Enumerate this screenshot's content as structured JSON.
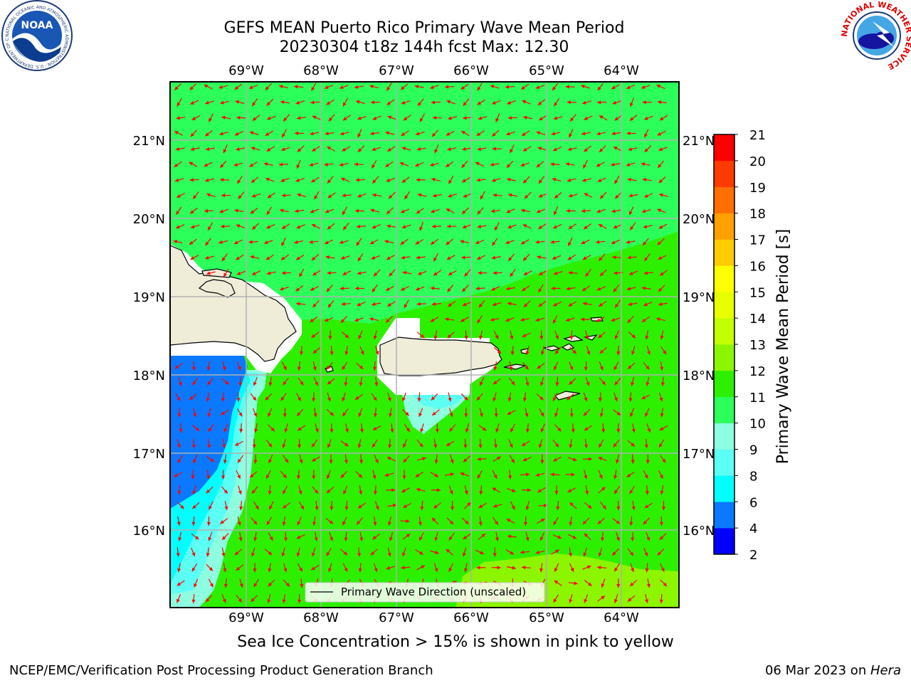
{
  "header": {
    "title_line1": "GEFS MEAN Puerto Rico Primary Wave Mean Period",
    "title_line2": "20230304 t18z 144h fcst   Max: 12.30"
  },
  "logos": {
    "left": {
      "text": "NOAA",
      "icon": "noaa-logo",
      "ring_text": "NATIONAL OCEANIC AND ATMOSPHERIC ADMINISTRATION · U.S. DEPARTMENT OF COMMERCE"
    },
    "right": {
      "icon": "nws-logo",
      "ring_text": "NATIONAL WEATHER SERVICE"
    }
  },
  "map": {
    "lon_labels": [
      "69°W",
      "68°W",
      "67°W",
      "66°W",
      "65°W",
      "64°W"
    ],
    "lat_labels": [
      "21°N",
      "20°N",
      "19°N",
      "18°N",
      "17°N",
      "16°N"
    ],
    "legend_label": "Primary Wave Direction (unscaled)",
    "colors": {
      "land": "#efedd8",
      "masked": "#ffffff",
      "arrow": "#ff0000",
      "grid": "#b0b0b0"
    },
    "field_colors": {
      "10-11": "#2cff5a",
      "11-12": "#2cf000",
      "12-13": "#8cf500",
      "9-10": "#8dffe0",
      "8-9": "#5cfff3",
      "6-8": "#00ffff",
      "4-6": "#0a79ff"
    }
  },
  "colorbar": {
    "label": "Primary Wave Mean Period [s]",
    "ticks": [
      "2",
      "4",
      "6",
      "8",
      "9",
      "10",
      "11",
      "12",
      "13",
      "14",
      "15",
      "16",
      "17",
      "18",
      "19",
      "20",
      "21"
    ],
    "colors": [
      "#0000ff",
      "#0a79ff",
      "#00ffff",
      "#5cfff3",
      "#8dffe0",
      "#2cff5a",
      "#2cf000",
      "#8cf500",
      "#c4ff00",
      "#e8ff00",
      "#ffff00",
      "#ffcc00",
      "#ff9f00",
      "#ff6f00",
      "#ff3a00",
      "#ff0000"
    ]
  },
  "footer": {
    "subtitle": "Sea Ice Concentration > 15% is shown in pink to yellow",
    "left": "NCEP/EMC/Verification Post Processing Product Generation Branch",
    "date_text": "06 Mar 2023 on ",
    "host": "Hera"
  }
}
